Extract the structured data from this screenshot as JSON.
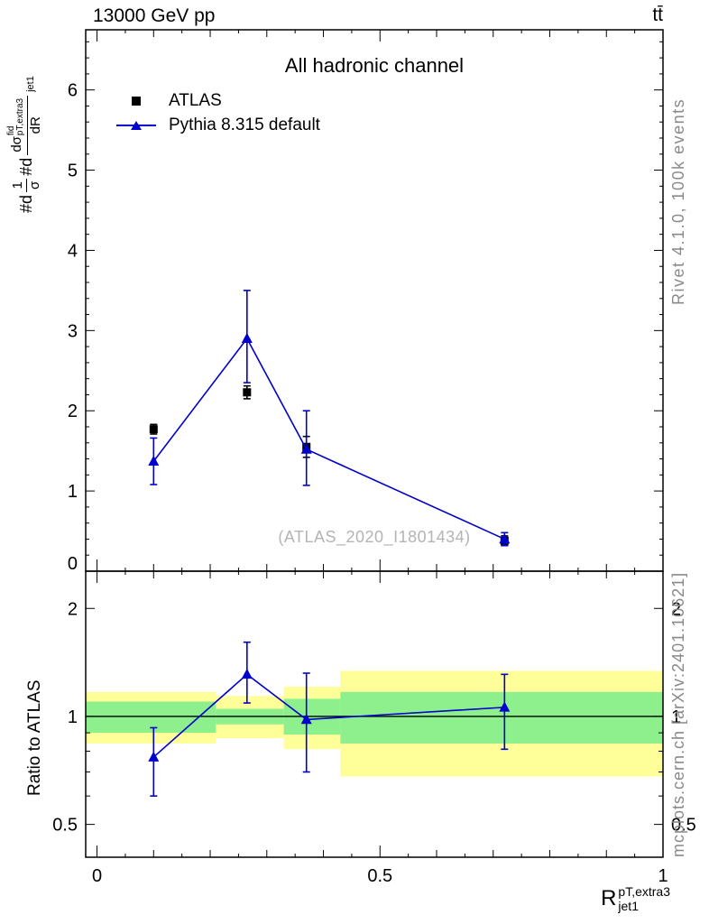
{
  "labels": {
    "header_left": "13000 GeV pp",
    "header_right": "tt̄",
    "watermark": "(ATLAS_2020_I1801434)",
    "rivet_note": "Rivet 4.1.0,  100k events",
    "mcplots_note": "mcplots.cern.ch [arXiv:2401.10621]",
    "ylabel_main": {
      "prefix": "#d",
      "frac1": {
        "num": "1",
        "den": "σ"
      },
      "mid": "#d",
      "frac2": {
        "num_base": "dσ",
        "num_sup": "fid",
        "num_sub": "pT,extra3",
        "den": "dR"
      },
      "trailing_sub": "jet1"
    },
    "xlabel": {
      "base": "R",
      "sup": "pT,extra3",
      "sub": "jet1"
    }
  },
  "colors": {
    "accent_blue": "#0000cc",
    "band_yellow": "#ffff99",
    "band_green": "#8df08d",
    "text_gray": "#8a8a8a",
    "watermark_gray": "#b4b4b4"
  },
  "chart_data": [
    {
      "type": "scatter",
      "panel": "main",
      "title": "All hadronic channel",
      "xlim": [
        -0.02,
        1.0
      ],
      "ylim": [
        0,
        6.75
      ],
      "grid": false,
      "legend_position": "top-left",
      "xticks_major": [
        0,
        0.5,
        1
      ],
      "xtick_labels": [
        "0",
        "0.5",
        "1"
      ],
      "yticks_major": [
        0,
        1,
        2,
        3,
        4,
        5,
        6
      ],
      "series": [
        {
          "name": "ATLAS",
          "marker": "square",
          "color": "#000000",
          "line": false,
          "x": [
            0.1,
            0.265,
            0.37,
            0.72
          ],
          "y": [
            1.77,
            2.23,
            1.55,
            0.38
          ],
          "yerr": [
            0.06,
            0.08,
            0.13,
            0.06
          ]
        },
        {
          "name": "Pythia 8.315 default",
          "marker": "triangle",
          "color": "#0000cc",
          "line": true,
          "x": [
            0.1,
            0.265,
            0.37,
            0.72
          ],
          "y": [
            1.37,
            2.9,
            1.52,
            0.4
          ],
          "yerr_lo": [
            0.29,
            0.55,
            0.45,
            0.08
          ],
          "yerr_hi": [
            0.29,
            0.6,
            0.48,
            0.08
          ]
        }
      ]
    },
    {
      "type": "ratio",
      "panel": "ratio",
      "ylabel": "Ratio to ATLAS",
      "yscale": "log",
      "ylim": [
        0.405,
        2.54
      ],
      "refline": 1,
      "yticks_labeled": [
        0.5,
        1,
        2
      ],
      "yticks_minor": [
        0.6,
        0.7,
        0.8,
        0.9
      ],
      "bins": [
        {
          "x0": -0.02,
          "x1": 0.21,
          "yellow": [
            0.84,
            1.17
          ],
          "green": [
            0.9,
            1.1
          ]
        },
        {
          "x0": 0.21,
          "x1": 0.33,
          "yellow": [
            0.87,
            1.14
          ],
          "green": [
            0.95,
            1.05
          ]
        },
        {
          "x0": 0.33,
          "x1": 0.43,
          "yellow": [
            0.81,
            1.21
          ],
          "green": [
            0.89,
            1.12
          ]
        },
        {
          "x0": 0.43,
          "x1": 1.0,
          "yellow": [
            0.68,
            1.34
          ],
          "green": [
            0.84,
            1.17
          ]
        }
      ],
      "series": [
        {
          "name": "Pythia 8.315 default / ATLAS",
          "marker": "triangle",
          "color": "#0000cc",
          "line": true,
          "x": [
            0.1,
            0.265,
            0.37,
            0.72
          ],
          "y": [
            0.77,
            1.31,
            0.98,
            1.06
          ],
          "ylo": [
            0.6,
            1.09,
            0.7,
            0.81
          ],
          "yhi": [
            0.93,
            1.61,
            1.32,
            1.31
          ]
        }
      ]
    }
  ]
}
